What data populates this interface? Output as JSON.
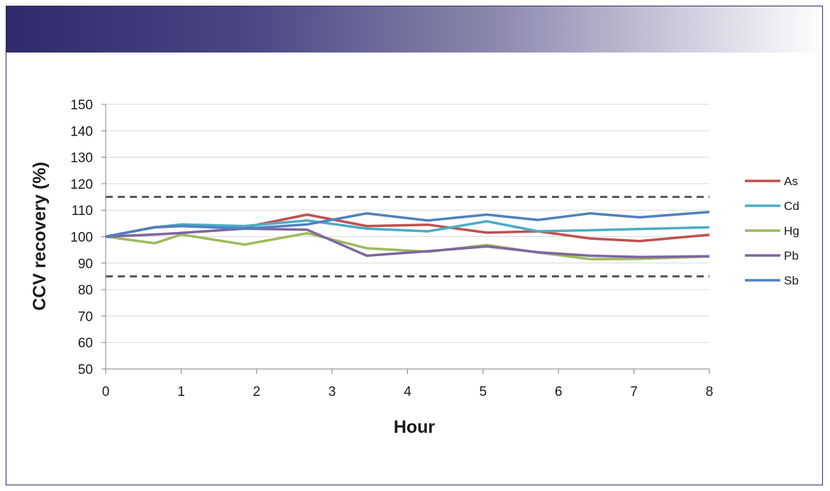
{
  "chart_data": {
    "type": "line",
    "title": "",
    "xlabel": "Hour",
    "ylabel": "CCV recovery (%)",
    "xlim": [
      0,
      8
    ],
    "ylim": [
      50,
      150
    ],
    "xticks": [
      0,
      1,
      2,
      3,
      4,
      5,
      6,
      7,
      8
    ],
    "yticks": [
      50,
      60,
      70,
      80,
      90,
      100,
      110,
      120,
      130,
      140,
      150
    ],
    "grid": "horizontal",
    "legend_position": "right",
    "control_limits": [
      115,
      85
    ],
    "x": [
      0,
      0.65,
      1.0,
      1.84,
      2.67,
      3.46,
      4.27,
      5.05,
      5.73,
      6.42,
      7.08,
      8.0
    ],
    "series": [
      {
        "name": "As",
        "color": "#c0504d",
        "values": [
          100,
          103.5,
          104,
          103.5,
          108.3,
          104,
          104.5,
          101.5,
          102,
          99.3,
          98.3,
          100.7
        ]
      },
      {
        "name": "Cd",
        "color": "#4bacc6",
        "values": [
          100,
          103.5,
          104.6,
          104,
          106.1,
          103,
          102,
          105.8,
          102,
          102.4,
          102.9,
          103.5
        ]
      },
      {
        "name": "Hg",
        "color": "#9bbb59",
        "values": [
          100,
          97.5,
          100.8,
          97,
          101.3,
          95.6,
          94.3,
          96.8,
          94,
          91.5,
          91.6,
          92.5
        ]
      },
      {
        "name": "Pb",
        "color": "#8064a2",
        "values": [
          100,
          100.8,
          101.4,
          103,
          102.6,
          92.8,
          94.5,
          96.3,
          94.1,
          92.8,
          92.3,
          92.6
        ]
      },
      {
        "name": "Sb",
        "color": "#4f81bd",
        "values": [
          100,
          103.6,
          104,
          103,
          104.6,
          108.8,
          106.1,
          108.3,
          106.3,
          108.8,
          107.3,
          109.3
        ]
      }
    ]
  }
}
